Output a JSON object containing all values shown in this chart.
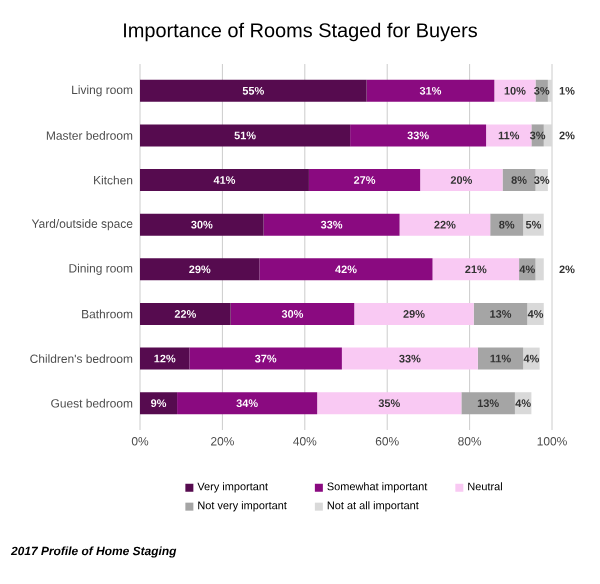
{
  "chart_data": {
    "type": "bar",
    "orientation": "horizontal",
    "stacked": true,
    "title": "Importance of Rooms Staged for Buyers",
    "categories": [
      "Living room",
      "Master bedroom",
      "Kitchen",
      "Yard/outside space",
      "Dining room",
      "Bathroom",
      "Children's bedroom",
      "Guest bedroom"
    ],
    "series": [
      {
        "name": "Very important",
        "color": "#560b4f",
        "values": [
          55,
          51,
          41,
          30,
          29,
          22,
          12,
          9
        ],
        "value_labels": [
          "55%",
          "51%",
          "41%",
          "30%",
          "29%",
          "22%",
          "12%",
          "9%"
        ]
      },
      {
        "name": "Somewhat important",
        "color": "#8a0a80",
        "values": [
          31,
          33,
          27,
          33,
          42,
          30,
          37,
          34
        ],
        "value_labels": [
          "31%",
          "33%",
          "27%",
          "33%",
          "42%",
          "30%",
          "37%",
          "34%"
        ]
      },
      {
        "name": "Neutral",
        "color": "#f9c9f3",
        "values": [
          10,
          11,
          20,
          22,
          21,
          29,
          33,
          35
        ],
        "value_labels": [
          "10%",
          "11%",
          "20%",
          "22%",
          "21%",
          "29%",
          "33%",
          "35%"
        ]
      },
      {
        "name": "Not very important",
        "color": "#a5a5a5",
        "values": [
          3,
          3,
          8,
          8,
          4,
          13,
          11,
          13
        ],
        "value_labels": [
          "3%",
          "3%",
          "8%",
          "8%",
          "4%",
          "13%",
          "11%",
          "13%"
        ]
      },
      {
        "name": "Not at all important",
        "color": "#d9d9d9",
        "values": [
          1,
          2,
          3,
          5,
          2,
          4,
          4,
          4
        ],
        "value_labels": [
          "1%",
          "2%",
          "3%",
          "5%",
          "2%",
          "4%",
          "4%",
          "4%"
        ]
      }
    ],
    "xlim": [
      0,
      100
    ],
    "xticks": [
      {
        "value": 0,
        "label": "0%"
      },
      {
        "value": 20,
        "label": "20%"
      },
      {
        "value": 40,
        "label": "40%"
      },
      {
        "value": 60,
        "label": "60%"
      },
      {
        "value": 80,
        "label": "80%"
      },
      {
        "value": 100,
        "label": "100%"
      }
    ],
    "grid": "x",
    "legend": "bottom",
    "annotations": [
      "2017 Profile of Home Staging"
    ]
  }
}
